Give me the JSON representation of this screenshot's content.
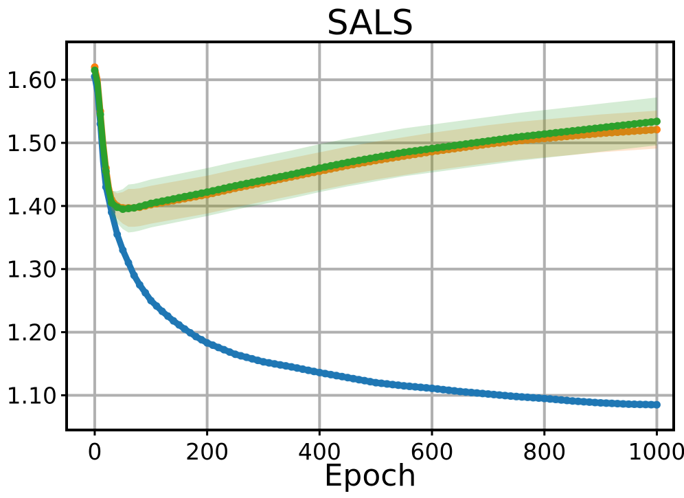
{
  "chart_data": {
    "type": "line",
    "title": "SALS",
    "xlabel": "Epoch",
    "ylabel": "",
    "xlim": [
      -50,
      1030
    ],
    "ylim": [
      1.045,
      1.66
    ],
    "grid": true,
    "xticks": [
      0,
      200,
      400,
      600,
      800,
      1000
    ],
    "xtick_labels": [
      "0",
      "200",
      "400",
      "600",
      "800",
      "1000"
    ],
    "yticks": [
      1.1,
      1.2,
      1.3,
      1.4,
      1.5,
      1.6
    ],
    "ytick_labels": [
      "1.10",
      "1.20",
      "1.30",
      "1.40",
      "1.50",
      "1.60"
    ],
    "series": [
      {
        "color": "#1f77b4",
        "band": 0.006,
        "x": [
          0,
          5,
          10,
          15,
          20,
          25,
          30,
          40,
          50,
          60,
          70,
          80,
          100,
          120,
          140,
          160,
          180,
          200,
          250,
          300,
          350,
          400,
          450,
          500,
          550,
          600,
          650,
          700,
          750,
          800,
          850,
          900,
          950,
          1000
        ],
        "y": [
          1.605,
          1.58,
          1.53,
          1.47,
          1.43,
          1.41,
          1.39,
          1.355,
          1.33,
          1.31,
          1.29,
          1.275,
          1.25,
          1.233,
          1.218,
          1.205,
          1.193,
          1.183,
          1.165,
          1.153,
          1.145,
          1.136,
          1.128,
          1.12,
          1.115,
          1.111,
          1.106,
          1.102,
          1.098,
          1.095,
          1.091,
          1.088,
          1.086,
          1.085
        ]
      },
      {
        "color": "#ff7f0e",
        "band": 0.03,
        "x": [
          0,
          5,
          10,
          15,
          20,
          25,
          30,
          40,
          50,
          60,
          70,
          80,
          100,
          150,
          200,
          250,
          300,
          350,
          400,
          450,
          500,
          550,
          600,
          650,
          700,
          750,
          800,
          850,
          900,
          950,
          1000
        ],
        "y": [
          1.62,
          1.6,
          1.55,
          1.5,
          1.46,
          1.43,
          1.41,
          1.4,
          1.397,
          1.397,
          1.397,
          1.398,
          1.402,
          1.41,
          1.418,
          1.428,
          1.437,
          1.446,
          1.455,
          1.464,
          1.472,
          1.479,
          1.486,
          1.492,
          1.498,
          1.503,
          1.507,
          1.511,
          1.515,
          1.518,
          1.521
        ]
      },
      {
        "color": "#2ca02c",
        "band": 0.038,
        "x": [
          0,
          5,
          10,
          15,
          20,
          25,
          30,
          40,
          50,
          60,
          70,
          80,
          100,
          150,
          200,
          250,
          300,
          350,
          400,
          450,
          500,
          550,
          600,
          650,
          700,
          750,
          800,
          850,
          900,
          950,
          1000
        ],
        "y": [
          1.615,
          1.595,
          1.545,
          1.495,
          1.455,
          1.425,
          1.405,
          1.398,
          1.395,
          1.396,
          1.397,
          1.399,
          1.404,
          1.413,
          1.422,
          1.432,
          1.441,
          1.45,
          1.46,
          1.469,
          1.477,
          1.485,
          1.491,
          1.497,
          1.503,
          1.509,
          1.514,
          1.519,
          1.524,
          1.529,
          1.534
        ]
      }
    ]
  }
}
